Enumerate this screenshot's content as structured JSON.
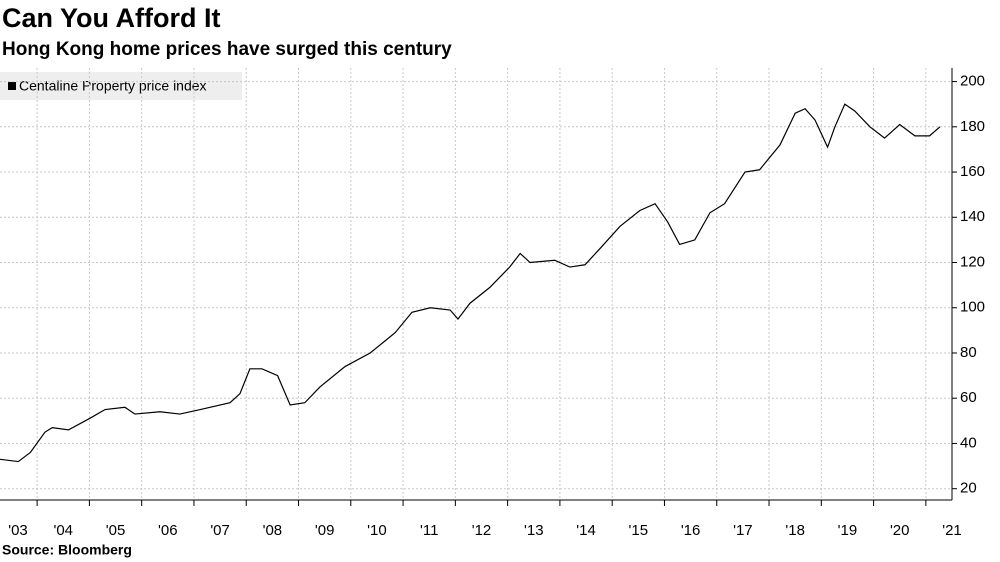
{
  "chart_data": {
    "type": "line",
    "title": "Can You Afford It",
    "subtitle": "Hong Kong home prices have surged this century",
    "source": "Source: Bloomberg",
    "x": [
      2003.29,
      2003.64,
      2003.87,
      2004.15,
      2004.29,
      2004.6,
      2005.0,
      2005.3,
      2005.68,
      2005.87,
      2006.35,
      2006.73,
      2007.12,
      2007.69,
      2007.88,
      2008.07,
      2008.3,
      2008.6,
      2008.84,
      2009.12,
      2009.41,
      2009.89,
      2010.37,
      2010.85,
      2011.17,
      2011.52,
      2011.9,
      2012.05,
      2012.28,
      2012.66,
      2013.04,
      2013.24,
      2013.43,
      2013.9,
      2014.19,
      2014.48,
      2014.76,
      2015.15,
      2015.53,
      2015.82,
      2016.06,
      2016.29,
      2016.58,
      2016.87,
      2017.15,
      2017.54,
      2017.82,
      2018.21,
      2018.5,
      2018.69,
      2018.88,
      2019.12,
      2019.26,
      2019.45,
      2019.64,
      2019.93,
      2020.21,
      2020.5,
      2020.79,
      2021.07,
      2021.27
    ],
    "series": [
      {
        "name": "Centaline Property price index",
        "color": "#000000",
        "values": [
          33,
          32,
          36,
          45,
          47,
          46,
          51,
          55,
          56,
          53,
          54,
          53,
          55,
          58,
          62,
          73,
          73,
          70,
          57,
          58,
          65,
          74,
          80,
          89,
          98,
          100,
          99,
          95,
          102,
          109,
          118,
          124,
          120,
          121,
          118,
          119,
          126,
          136,
          143,
          146,
          138,
          128,
          130,
          142,
          146,
          160,
          161,
          172,
          186,
          188,
          183,
          171,
          180,
          190,
          187,
          180,
          175,
          181,
          176,
          176,
          180
        ]
      }
    ],
    "xlim": [
      2003.29,
      2021.5
    ],
    "xticks": [
      {
        "value": 2003,
        "label": "'03"
      },
      {
        "value": 2004,
        "label": "'04"
      },
      {
        "value": 2005,
        "label": "'05"
      },
      {
        "value": 2006,
        "label": "'06"
      },
      {
        "value": 2007,
        "label": "'07"
      },
      {
        "value": 2008,
        "label": "'08"
      },
      {
        "value": 2009,
        "label": "'09"
      },
      {
        "value": 2010,
        "label": "'10"
      },
      {
        "value": 2011,
        "label": "'11"
      },
      {
        "value": 2012,
        "label": "'12"
      },
      {
        "value": 2013,
        "label": "'13"
      },
      {
        "value": 2014,
        "label": "'14"
      },
      {
        "value": 2015,
        "label": "'15"
      },
      {
        "value": 2016,
        "label": "'16"
      },
      {
        "value": 2017,
        "label": "'17"
      },
      {
        "value": 2018,
        "label": "'18"
      },
      {
        "value": 2019,
        "label": "'19"
      },
      {
        "value": 2020,
        "label": "'20"
      },
      {
        "value": 2021,
        "label": "'21"
      }
    ],
    "ylim": [
      15,
      206
    ],
    "yticks": [
      20,
      40,
      60,
      80,
      100,
      120,
      140,
      160,
      180,
      200
    ],
    "grid": true
  }
}
